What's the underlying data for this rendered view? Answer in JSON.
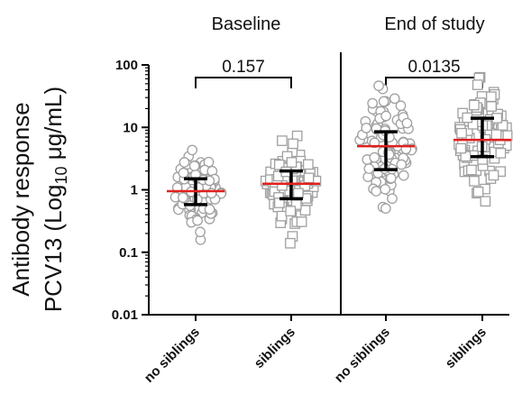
{
  "chart_data": {
    "type": "scatter",
    "ylabel_line1": "Antibody response",
    "ylabel_line2_prefix": "PCV13 (Log",
    "ylabel_line2_sub": "10",
    "ylabel_line2_suffix": " μg/mL)",
    "y_scale": "log",
    "ylim": [
      0.01,
      100
    ],
    "yticks": [
      100,
      10,
      1,
      0.1,
      0.01
    ],
    "ytick_labels": [
      "100",
      "10",
      "1",
      "0.1",
      "0.01"
    ],
    "grid": false,
    "panels": [
      {
        "title": "Baseline",
        "p_value": "0.157",
        "groups": [
          {
            "label": "no siblings",
            "marker": "circle",
            "median": 0.95,
            "iqr": [
              0.58,
              1.5
            ]
          },
          {
            "label": "siblings",
            "marker": "square",
            "median": 1.25,
            "iqr": [
              0.72,
              2.0
            ]
          }
        ]
      },
      {
        "title": "End of study",
        "p_value": "0.0135",
        "groups": [
          {
            "label": "no siblings",
            "marker": "circle",
            "median": 5.0,
            "iqr": [
              2.1,
              8.5
            ]
          },
          {
            "label": "siblings",
            "marker": "square",
            "median": 6.3,
            "iqr": [
              3.4,
              14.0
            ]
          }
        ]
      }
    ],
    "colors": {
      "points": "#a0a0a0",
      "median": "#e0201e",
      "error": "#000000"
    }
  }
}
